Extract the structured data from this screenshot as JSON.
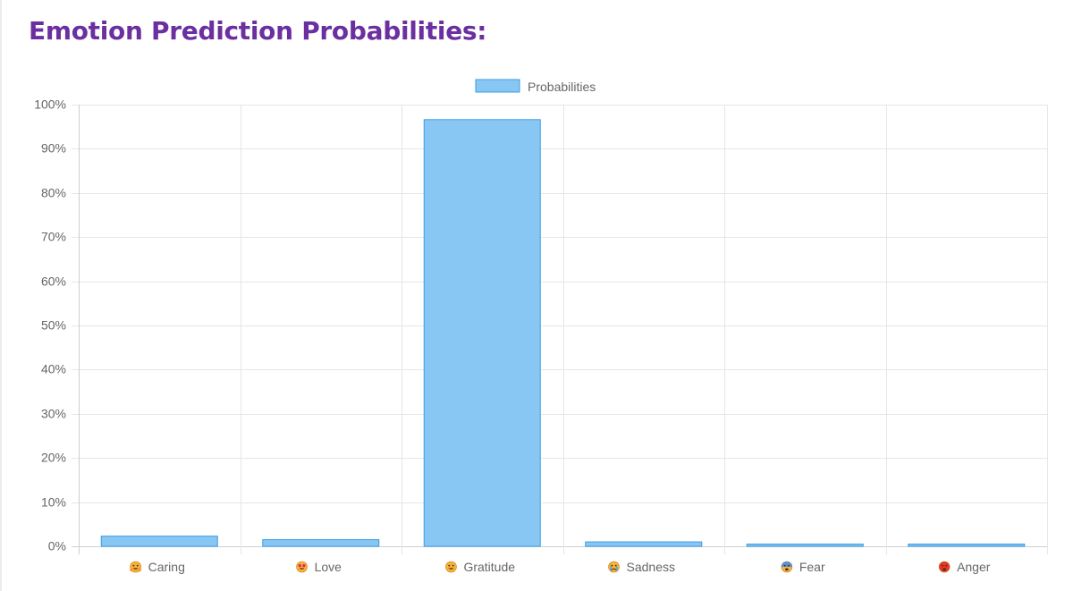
{
  "page": {
    "title": "Emotion Prediction Probabilities:"
  },
  "chart_data": {
    "type": "bar",
    "categories": [
      "Caring",
      "Love",
      "Gratitude",
      "Sadness",
      "Fear",
      "Anger"
    ],
    "category_icons": [
      "hugging-face-icon",
      "heart-eyes-face-icon",
      "grinning-face-icon",
      "crying-face-icon",
      "fearful-face-icon",
      "angry-face-icon"
    ],
    "series": [
      {
        "name": "Probabilities",
        "values": [
          2.3,
          1.5,
          96.6,
          1.0,
          0.5,
          0.5
        ]
      }
    ],
    "y_ticks": [
      "0%",
      "10%",
      "20%",
      "30%",
      "40%",
      "50%",
      "60%",
      "70%",
      "80%",
      "90%",
      "100%"
    ],
    "ylim": [
      0,
      100
    ],
    "unit": "%",
    "grid": true,
    "legend_position": "top",
    "colors": {
      "bar_fill": "#88c6f3",
      "bar_border": "#3a9ee4",
      "grid": "#e6e6e6",
      "tick_text": "#666666",
      "title": "#6b2fa0"
    }
  }
}
